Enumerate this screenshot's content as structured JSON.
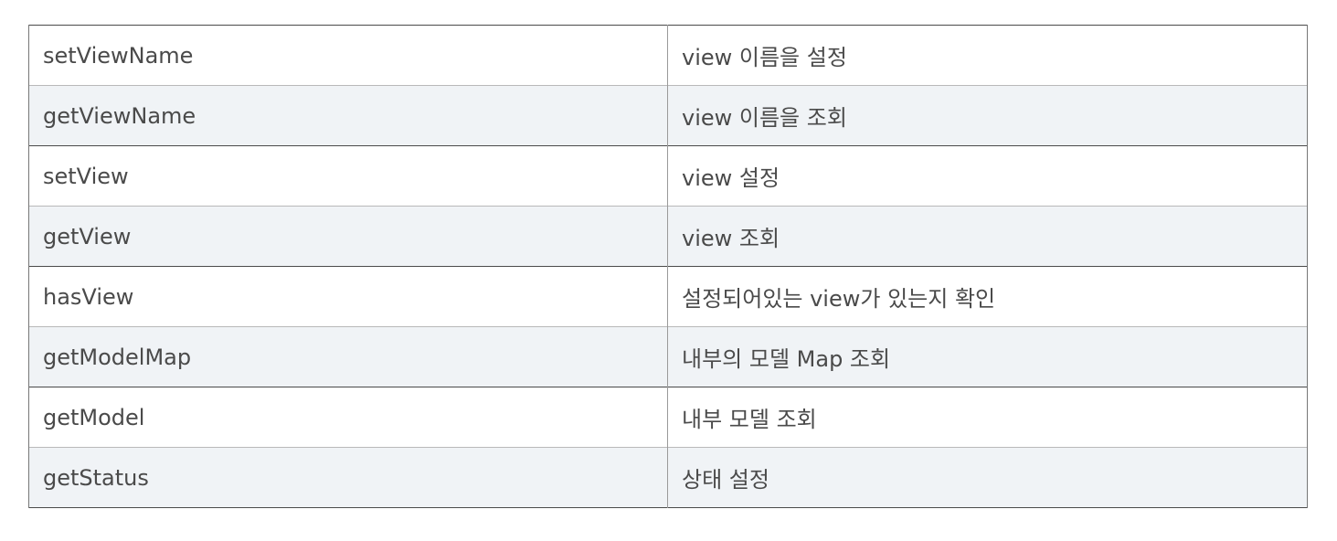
{
  "table": {
    "rows": [
      {
        "method": "setViewName",
        "description": "view 이름을 설정"
      },
      {
        "method": "getViewName",
        "description": "view 이름을 조회"
      },
      {
        "method": "setView",
        "description": "view 설정"
      },
      {
        "method": "getView",
        "description": "view 조회"
      },
      {
        "method": "hasView",
        "description": "설정되어있는 view가 있는지 확인"
      },
      {
        "method": "getModelMap",
        "description": "내부의 모델 Map 조회"
      },
      {
        "method": "getModel",
        "description": "내부 모델 조회"
      },
      {
        "method": "getStatus",
        "description": "상태 설정"
      }
    ]
  },
  "colors": {
    "text": "#4a4a4a",
    "row_alt_background": "#f0f3f6",
    "border": "#4a4a4a"
  }
}
